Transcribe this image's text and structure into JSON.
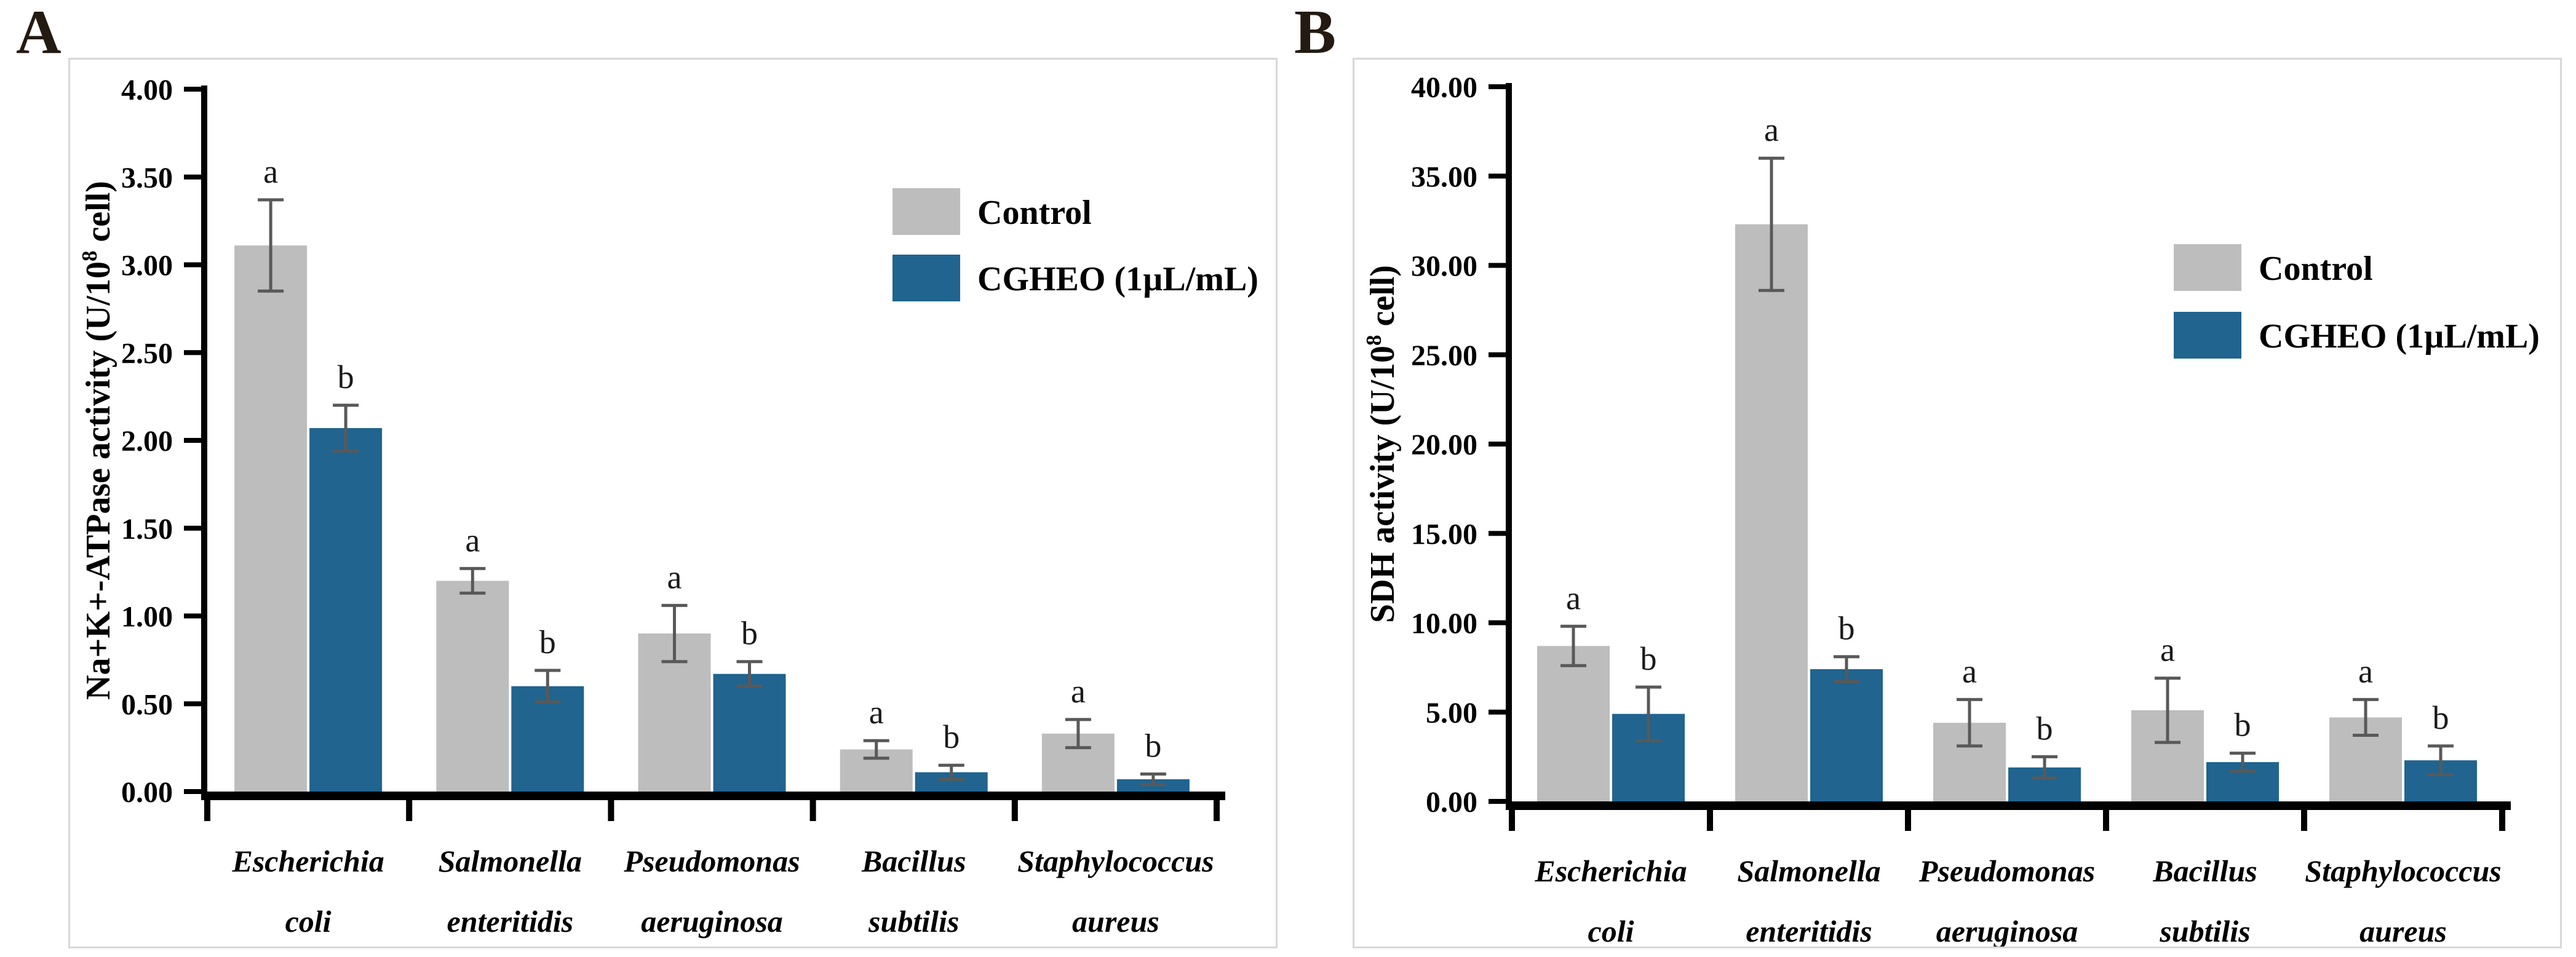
{
  "colors": {
    "control_fill": "#bdbdbd",
    "treatment_fill": "#20648f",
    "error_bar": "#595959",
    "axis": "#000000",
    "panel_border": "#d8d8d8",
    "panel_letter": "#231a12"
  },
  "legend": {
    "control_label": "Control",
    "treatment_label": "CGHEO (1µL/mL)"
  },
  "chart_data": [
    {
      "panel_label": "A",
      "type": "bar",
      "title": "",
      "xlabel": "",
      "ylabel": "Na+K+-ATPase activity (U/10⁸ cell)",
      "ylim": [
        0,
        4
      ],
      "ytick_labels": [
        "0.00",
        "0.50",
        "1.00",
        "1.50",
        "2.00",
        "2.50",
        "3.00",
        "3.50",
        "4.00"
      ],
      "grid": false,
      "legend_position": "upper-right-inside",
      "categories": [
        [
          "Escherichia",
          "coli"
        ],
        [
          "Salmonella",
          "enteritidis"
        ],
        [
          "Pseudomonas",
          "aeruginosa"
        ],
        [
          "Bacillus",
          "subtilis"
        ],
        [
          "Staphylococcus",
          "aureus"
        ]
      ],
      "series": [
        {
          "name": "Control",
          "name_key": "control",
          "color": "#bdbdbd",
          "values": [
            3.11,
            1.2,
            0.9,
            0.24,
            0.33
          ],
          "errors": [
            0.26,
            0.07,
            0.16,
            0.05,
            0.08
          ],
          "sig": [
            "a",
            "a",
            "a",
            "a",
            "a"
          ]
        },
        {
          "name": "CGHEO (1µL/mL)",
          "name_key": "cgheo",
          "color": "#20648f",
          "values": [
            2.07,
            0.6,
            0.67,
            0.11,
            0.07
          ],
          "errors": [
            0.13,
            0.09,
            0.07,
            0.04,
            0.03
          ],
          "sig": [
            "b",
            "b",
            "b",
            "b",
            "b"
          ]
        }
      ]
    },
    {
      "panel_label": "B",
      "type": "bar",
      "title": "",
      "xlabel": "",
      "ylabel": "SDH activity (U/10⁸ cell)",
      "ylim": [
        0,
        40
      ],
      "ytick_labels": [
        "0.00",
        "5.00",
        "10.00",
        "15.00",
        "20.00",
        "25.00",
        "30.00",
        "35.00",
        "40.00"
      ],
      "grid": false,
      "legend_position": "upper-right-inside",
      "categories": [
        [
          "Escherichia",
          "coli"
        ],
        [
          "Salmonella",
          "enteritidis"
        ],
        [
          "Pseudomonas",
          "aeruginosa"
        ],
        [
          "Bacillus",
          "subtilis"
        ],
        [
          "Staphylococcus",
          "aureus"
        ]
      ],
      "series": [
        {
          "name": "Control",
          "name_key": "control",
          "color": "#bdbdbd",
          "values": [
            8.7,
            32.3,
            4.4,
            5.1,
            4.7
          ],
          "errors": [
            1.1,
            3.7,
            1.3,
            1.8,
            1.0
          ],
          "sig": [
            "a",
            "a",
            "a",
            "a",
            "a"
          ]
        },
        {
          "name": "CGHEO (1µL/mL)",
          "name_key": "cgheo",
          "color": "#20648f",
          "values": [
            4.9,
            7.4,
            1.9,
            2.2,
            2.3
          ],
          "errors": [
            1.5,
            0.7,
            0.6,
            0.5,
            0.8
          ],
          "sig": [
            "b",
            "b",
            "b",
            "b",
            "b"
          ]
        }
      ]
    }
  ]
}
